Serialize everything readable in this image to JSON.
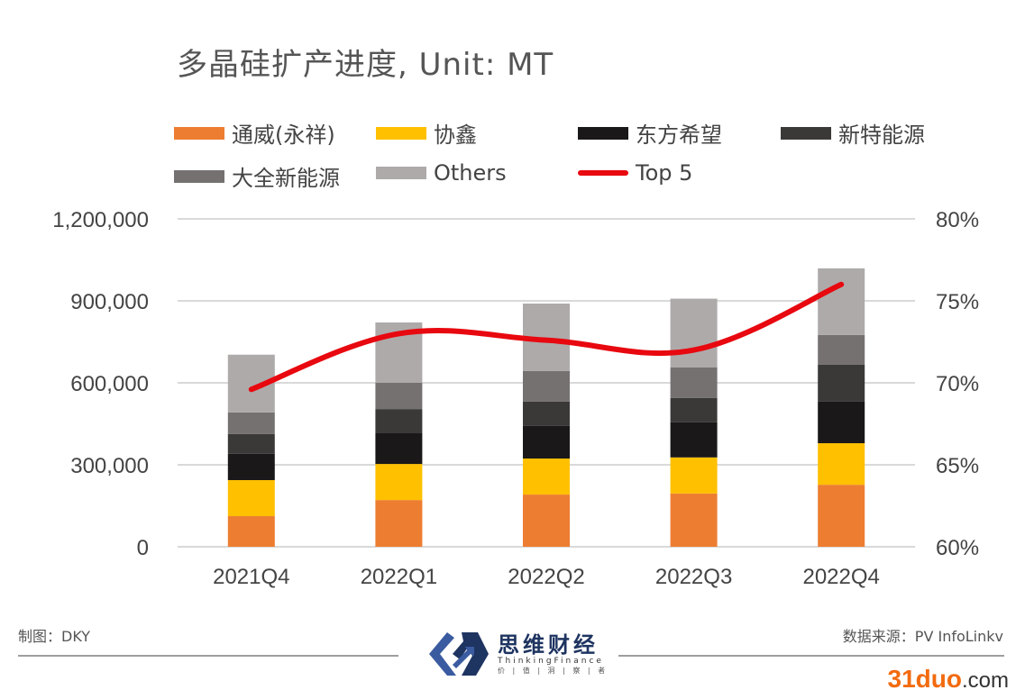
{
  "chart_data": {
    "type": "bar",
    "stacked": true,
    "title": "多晶硅扩产进度, Unit: MT",
    "categories": [
      "2021Q4",
      "2022Q1",
      "2022Q2",
      "2022Q3",
      "2022Q4"
    ],
    "series": [
      {
        "name": "通威(永祥)",
        "color": "#ed7d31",
        "values": [
          112000,
          171000,
          191000,
          195000,
          227000
        ]
      },
      {
        "name": "协鑫",
        "color": "#ffc000",
        "values": [
          132000,
          132000,
          132000,
          132000,
          152000
        ]
      },
      {
        "name": "东方希望",
        "color": "#1a1818",
        "values": [
          96000,
          115000,
          119000,
          129000,
          152000
        ]
      },
      {
        "name": "新特能源",
        "color": "#3b3838",
        "values": [
          73000,
          86000,
          89000,
          89000,
          135000
        ]
      },
      {
        "name": "大全新能源",
        "color": "#767171",
        "values": [
          79000,
          96000,
          112000,
          112000,
          109000
        ]
      },
      {
        "name": "Others",
        "color": "#aeaaaa",
        "values": [
          211000,
          221000,
          247000,
          251000,
          244000
        ]
      }
    ],
    "line_series": {
      "name": "Top 5",
      "color": "#e8080f",
      "axis": "right",
      "values": [
        0.696,
        0.73,
        0.726,
        0.72,
        0.76
      ]
    },
    "left_axis": {
      "ylim": [
        0,
        1200000
      ],
      "ticks": [
        "0",
        "300,000",
        "600,000",
        "900,000",
        "1,200,000"
      ],
      "tick_values": [
        0,
        300000,
        600000,
        900000,
        1200000
      ]
    },
    "right_axis": {
      "ylim": [
        0.6,
        0.8
      ],
      "ticks": [
        "60%",
        "65%",
        "70%",
        "75%",
        "80%"
      ],
      "tick_values": [
        0.6,
        0.65,
        0.7,
        0.75,
        0.8
      ]
    },
    "grid": true,
    "legend_position": "top"
  },
  "title": {
    "main": "多晶硅扩产进度,",
    "unit": "Unit: MT"
  },
  "legend": [
    {
      "label": "通威(永祥)",
      "color": "#ed7d31",
      "kind": "box"
    },
    {
      "label": "协鑫",
      "color": "#ffc000",
      "kind": "box"
    },
    {
      "label": "东方希望",
      "color": "#1a1818",
      "kind": "box"
    },
    {
      "label": "新特能源",
      "color": "#3b3838",
      "kind": "box"
    },
    {
      "label": "大全新能源",
      "color": "#767171",
      "kind": "box"
    },
    {
      "label": "Others",
      "color": "#aeaaaa",
      "kind": "box"
    },
    {
      "label": "Top 5",
      "color": "#e8080f",
      "kind": "line"
    }
  ],
  "footer": {
    "author": "制图：DKY",
    "source": "数据来源：PV InfoLinkv",
    "logo_cn": "思维财经",
    "logo_en": "ThinkingFinance",
    "logo_sub": "价 | 值 | 洞 | 察 | 者",
    "watermark_main": "31duo",
    "watermark_suffix": ".com"
  }
}
